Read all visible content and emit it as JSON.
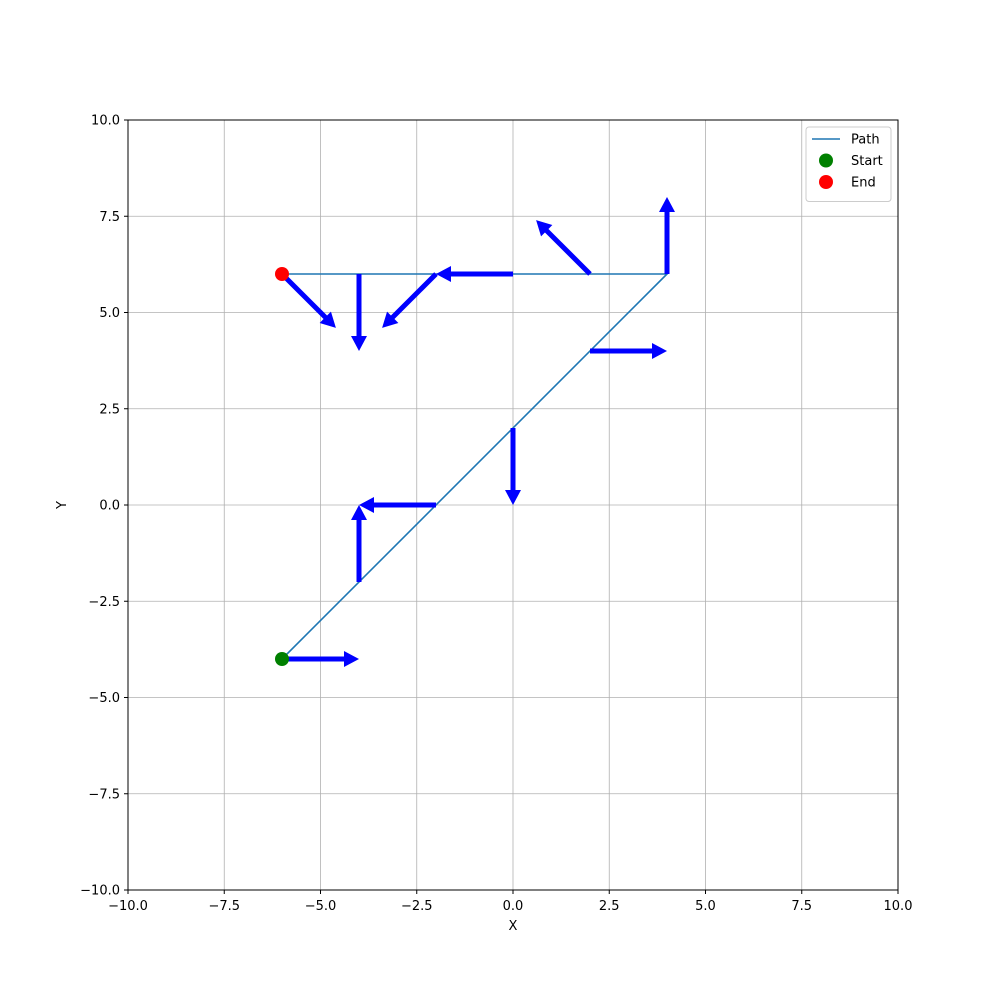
{
  "chart_data": {
    "type": "line",
    "title": "",
    "xlabel": "X",
    "ylabel": "Y",
    "xlim": [
      -10,
      10
    ],
    "ylim": [
      -10,
      10
    ],
    "grid": true,
    "legend_placement": "top-right",
    "x_ticks": [
      {
        "value": -10,
        "label": "−10.0"
      },
      {
        "value": -7.5,
        "label": "−7.5"
      },
      {
        "value": -5,
        "label": "−5.0"
      },
      {
        "value": -2.5,
        "label": "−2.5"
      },
      {
        "value": 0,
        "label": "0.0"
      },
      {
        "value": 2.5,
        "label": "2.5"
      },
      {
        "value": 5,
        "label": "5.0"
      },
      {
        "value": 7.5,
        "label": "7.5"
      },
      {
        "value": 10,
        "label": "10.0"
      }
    ],
    "y_ticks": [
      {
        "value": -10,
        "label": "−10.0"
      },
      {
        "value": -7.5,
        "label": "−7.5"
      },
      {
        "value": -5,
        "label": "−5.0"
      },
      {
        "value": -2.5,
        "label": "−2.5"
      },
      {
        "value": 0,
        "label": "0.0"
      },
      {
        "value": 2.5,
        "label": "2.5"
      },
      {
        "value": 5,
        "label": "5.0"
      },
      {
        "value": 7.5,
        "label": "7.5"
      },
      {
        "value": 10,
        "label": "10.0"
      }
    ],
    "path": {
      "name": "Path",
      "color": "#1f77b4",
      "points": [
        {
          "x": -6,
          "y": -4
        },
        {
          "x": 4,
          "y": 6
        },
        {
          "x": -6,
          "y": 6
        }
      ]
    },
    "start": {
      "name": "Start",
      "x": -6,
      "y": -4,
      "color": "#008000"
    },
    "end": {
      "name": "End",
      "x": -6,
      "y": 6,
      "color": "#ff0000"
    },
    "arrow_color": "#0000ff",
    "arrows": [
      {
        "x": -6,
        "y": -4,
        "dx": 2,
        "dy": 0
      },
      {
        "x": -4,
        "y": -2,
        "dx": 0,
        "dy": 2
      },
      {
        "x": -2,
        "y": 0,
        "dx": -2,
        "dy": 0
      },
      {
        "x": 0,
        "y": 2,
        "dx": 0,
        "dy": -2
      },
      {
        "x": 2,
        "y": 4,
        "dx": 2,
        "dy": 0
      },
      {
        "x": 4,
        "y": 6,
        "dx": 0,
        "dy": 2
      },
      {
        "x": 2,
        "y": 6,
        "dx": -1.4,
        "dy": 1.4
      },
      {
        "x": 0,
        "y": 6,
        "dx": -2,
        "dy": 0
      },
      {
        "x": -2,
        "y": 6,
        "dx": -1.4,
        "dy": -1.4
      },
      {
        "x": -4,
        "y": 6,
        "dx": 0,
        "dy": -2
      },
      {
        "x": -6,
        "y": 6,
        "dx": 1.4,
        "dy": -1.4
      }
    ],
    "legend": [
      {
        "label": "Path",
        "kind": "line",
        "color": "#1f77b4"
      },
      {
        "label": "Start",
        "kind": "marker",
        "color": "#008000"
      },
      {
        "label": "End",
        "kind": "marker",
        "color": "#ff0000"
      }
    ]
  }
}
